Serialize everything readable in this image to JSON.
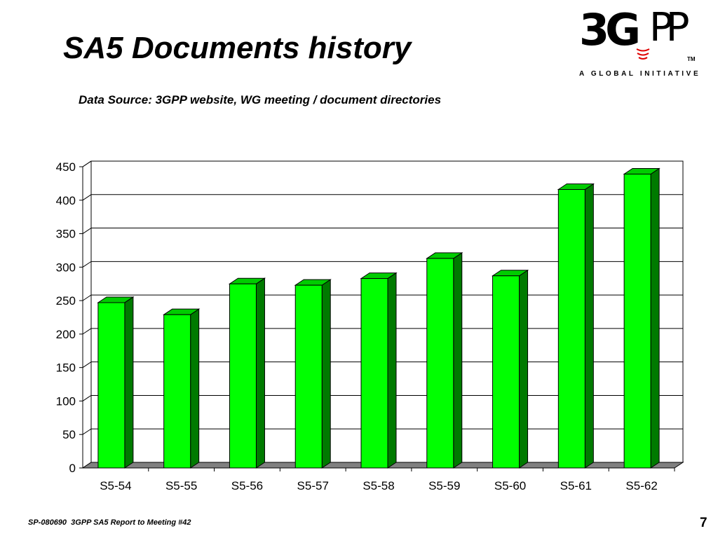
{
  "title": "SA5 Documents history",
  "subtitle": "Data Source: 3GPP website, WG meeting / document directories",
  "logo": {
    "brand_3g": "3G",
    "brand_pp": "PP",
    "tm": "TM",
    "tagline": "A GLOBAL INITIATIVE"
  },
  "footer": {
    "text": "SP-080690  3GPP SA5 Report to Meeting #42",
    "page_number": "7"
  },
  "colors": {
    "bar_front": "#00ff00",
    "bar_side": "#007a00",
    "bar_top": "#00cc00",
    "floor": "#808080"
  },
  "chart_data": {
    "type": "bar",
    "categories": [
      "S5-54",
      "S5-55",
      "S5-56",
      "S5-57",
      "S5-58",
      "S5-59",
      "S5-60",
      "S5-61",
      "S5-62"
    ],
    "values": [
      247,
      229,
      275,
      273,
      283,
      313,
      287,
      416,
      439
    ],
    "ylim": [
      0,
      450
    ],
    "yticks": [
      0,
      50,
      100,
      150,
      200,
      250,
      300,
      350,
      400,
      450
    ],
    "grid": true,
    "legend": "none",
    "style": "3d-column"
  }
}
